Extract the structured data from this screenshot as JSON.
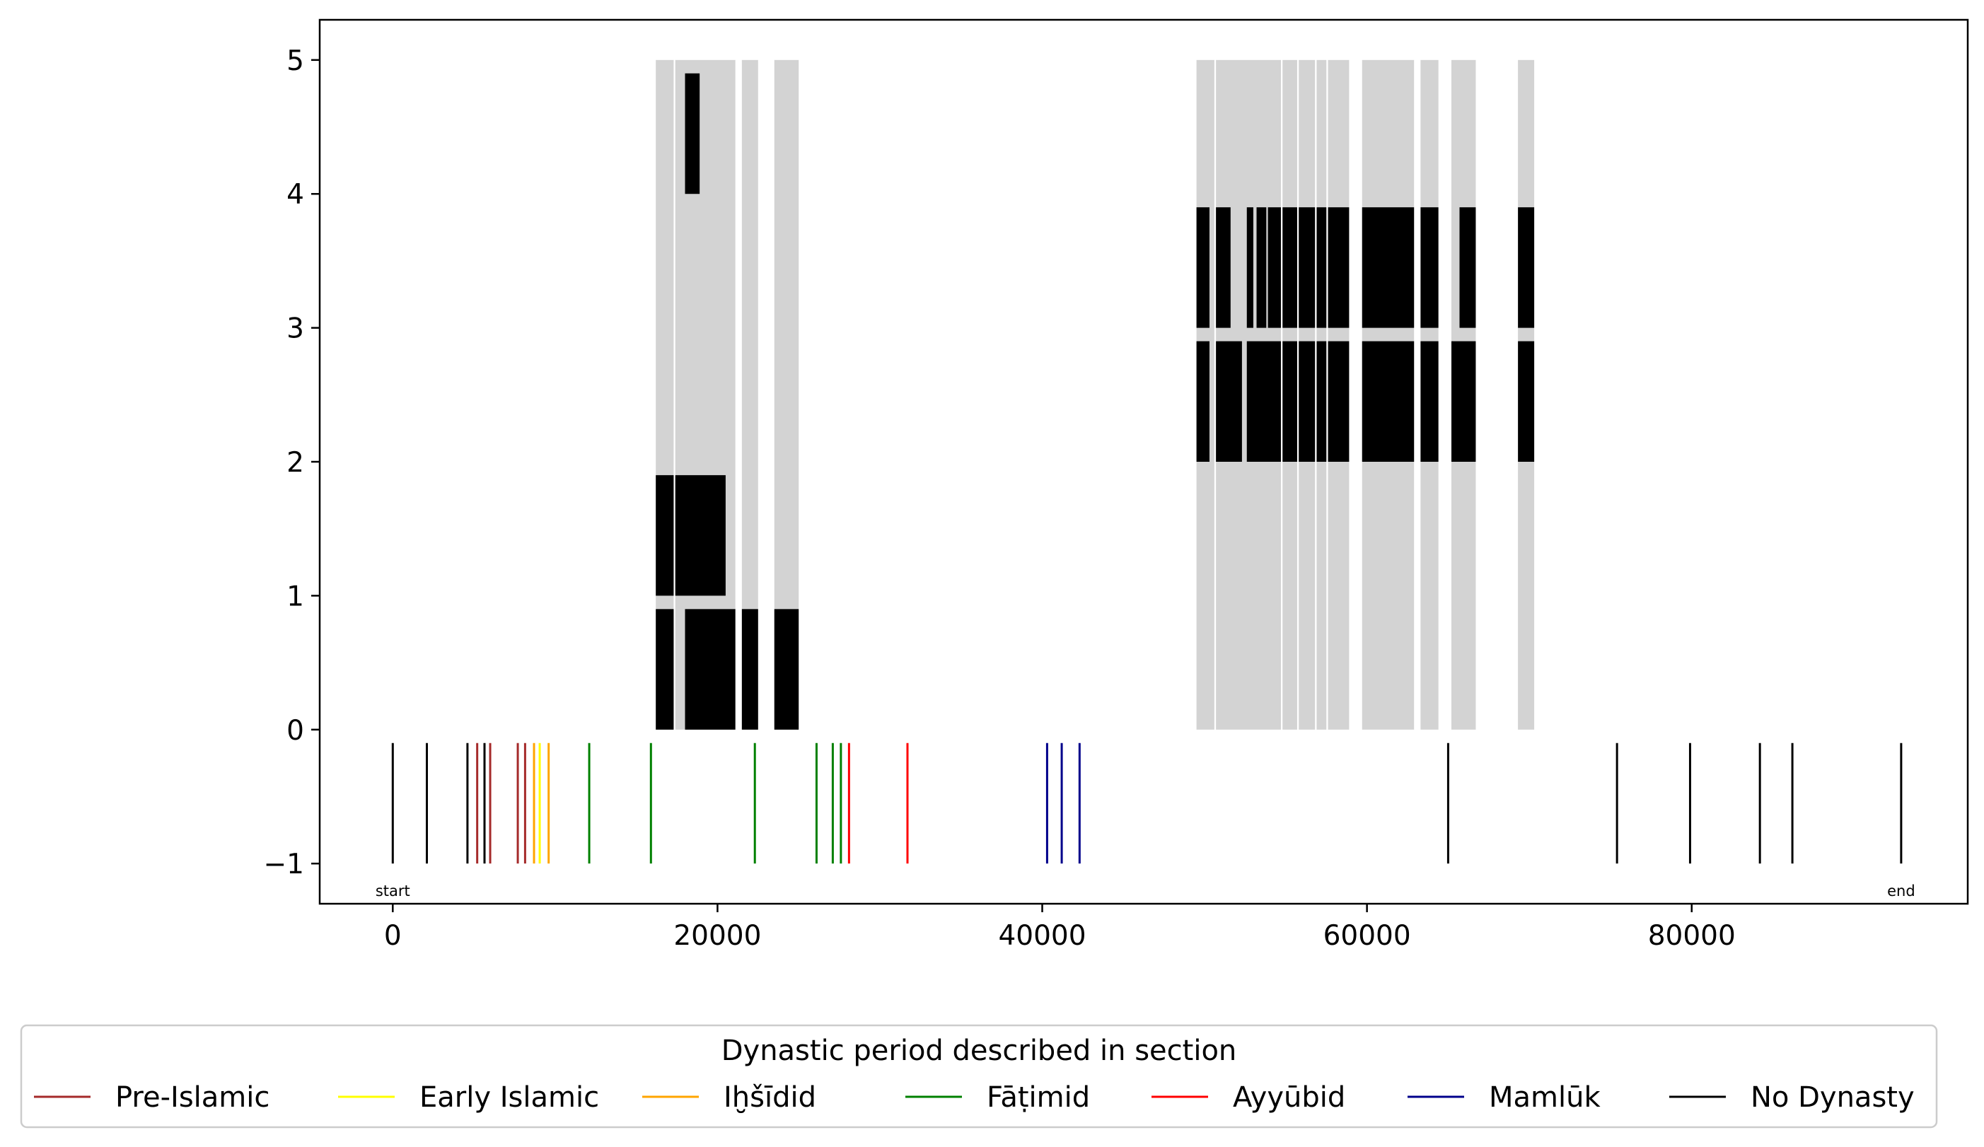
{
  "chart_data": {
    "type": "bar",
    "xlim": [
      -4500,
      97000
    ],
    "ylim": [
      -1.3,
      5.3
    ],
    "x_ticks": [
      0,
      20000,
      40000,
      60000,
      80000
    ],
    "y_ticks": [
      -1,
      0,
      1,
      2,
      3,
      4,
      5
    ],
    "grid": false,
    "background_spans": {
      "color": "#d3d3d3",
      "y_range": [
        0,
        5
      ],
      "spans": [
        [
          16200,
          17300
        ],
        [
          17400,
          21100
        ],
        [
          21500,
          22500
        ],
        [
          23500,
          25000
        ],
        [
          49500,
          50600
        ],
        [
          50700,
          54700
        ],
        [
          54800,
          55700
        ],
        [
          55800,
          56800
        ],
        [
          56900,
          57500
        ],
        [
          57600,
          58900
        ],
        [
          59700,
          62900
        ],
        [
          63300,
          64400
        ],
        [
          65200,
          66700
        ],
        [
          69300,
          70300
        ]
      ]
    },
    "bars": {
      "color": "#000000",
      "items": [
        {
          "x0": 16200,
          "x1": 17300,
          "y0": 0,
          "y1": 0.9
        },
        {
          "x0": 18000,
          "x1": 21100,
          "y0": 0,
          "y1": 0.9
        },
        {
          "x0": 21500,
          "x1": 22500,
          "y0": 0,
          "y1": 0.9
        },
        {
          "x0": 23500,
          "x1": 25000,
          "y0": 0,
          "y1": 0.9
        },
        {
          "x0": 16200,
          "x1": 17300,
          "y0": 1,
          "y1": 1.9
        },
        {
          "x0": 17400,
          "x1": 20500,
          "y0": 1,
          "y1": 1.9
        },
        {
          "x0": 18000,
          "x1": 18900,
          "y0": 4,
          "y1": 4.9
        },
        {
          "x0": 49500,
          "x1": 50300,
          "y0": 2,
          "y1": 2.9
        },
        {
          "x0": 50700,
          "x1": 52300,
          "y0": 2,
          "y1": 2.9
        },
        {
          "x0": 52600,
          "x1": 54700,
          "y0": 2,
          "y1": 2.9
        },
        {
          "x0": 54800,
          "x1": 55700,
          "y0": 2,
          "y1": 2.9
        },
        {
          "x0": 55800,
          "x1": 56800,
          "y0": 2,
          "y1": 2.9
        },
        {
          "x0": 56900,
          "x1": 57500,
          "y0": 2,
          "y1": 2.9
        },
        {
          "x0": 57600,
          "x1": 58900,
          "y0": 2,
          "y1": 2.9
        },
        {
          "x0": 59700,
          "x1": 62900,
          "y0": 2,
          "y1": 2.9
        },
        {
          "x0": 63300,
          "x1": 64400,
          "y0": 2,
          "y1": 2.9
        },
        {
          "x0": 65200,
          "x1": 66700,
          "y0": 2,
          "y1": 2.9
        },
        {
          "x0": 69300,
          "x1": 70300,
          "y0": 2,
          "y1": 2.9
        },
        {
          "x0": 49500,
          "x1": 50300,
          "y0": 3,
          "y1": 3.9
        },
        {
          "x0": 50700,
          "x1": 51600,
          "y0": 3,
          "y1": 3.9
        },
        {
          "x0": 52600,
          "x1": 53000,
          "y0": 3,
          "y1": 3.9
        },
        {
          "x0": 53200,
          "x1": 53800,
          "y0": 3,
          "y1": 3.9
        },
        {
          "x0": 53900,
          "x1": 54700,
          "y0": 3,
          "y1": 3.9
        },
        {
          "x0": 54800,
          "x1": 55700,
          "y0": 3,
          "y1": 3.9
        },
        {
          "x0": 55800,
          "x1": 56800,
          "y0": 3,
          "y1": 3.9
        },
        {
          "x0": 56900,
          "x1": 57500,
          "y0": 3,
          "y1": 3.9
        },
        {
          "x0": 57600,
          "x1": 58900,
          "y0": 3,
          "y1": 3.9
        },
        {
          "x0": 59700,
          "x1": 62900,
          "y0": 3,
          "y1": 3.9
        },
        {
          "x0": 63300,
          "x1": 64400,
          "y0": 3,
          "y1": 3.9
        },
        {
          "x0": 65700,
          "x1": 66700,
          "y0": 3,
          "y1": 3.9
        },
        {
          "x0": 69300,
          "x1": 70300,
          "y0": 3,
          "y1": 3.9
        }
      ]
    },
    "dynasty_markers": {
      "y_range": [
        -1,
        -0.1
      ],
      "markers": [
        {
          "x": 0,
          "dynasty": "No Dynasty"
        },
        {
          "x": 2100,
          "dynasty": "No Dynasty"
        },
        {
          "x": 4600,
          "dynasty": "No Dynasty"
        },
        {
          "x": 5200,
          "dynasty": "Pre-Islamic"
        },
        {
          "x": 5650,
          "dynasty": "No Dynasty"
        },
        {
          "x": 6000,
          "dynasty": "Pre-Islamic"
        },
        {
          "x": 7700,
          "dynasty": "Pre-Islamic"
        },
        {
          "x": 8150,
          "dynasty": "Pre-Islamic"
        },
        {
          "x": 8700,
          "dynasty": "Iḫšīdid"
        },
        {
          "x": 9050,
          "dynasty": "Early Islamic"
        },
        {
          "x": 9600,
          "dynasty": "Iḫšīdid"
        },
        {
          "x": 12100,
          "dynasty": "Fāṭimid"
        },
        {
          "x": 15900,
          "dynasty": "Fāṭimid"
        },
        {
          "x": 22300,
          "dynasty": "Fāṭimid"
        },
        {
          "x": 26100,
          "dynasty": "Fāṭimid"
        },
        {
          "x": 27100,
          "dynasty": "Fāṭimid"
        },
        {
          "x": 27600,
          "dynasty": "Fāṭimid"
        },
        {
          "x": 28100,
          "dynasty": "Ayyūbid"
        },
        {
          "x": 31700,
          "dynasty": "Ayyūbid"
        },
        {
          "x": 40300,
          "dynasty": "Mamlūk"
        },
        {
          "x": 41200,
          "dynasty": "Mamlūk"
        },
        {
          "x": 42300,
          "dynasty": "Mamlūk"
        },
        {
          "x": 65000,
          "dynasty": "No Dynasty"
        },
        {
          "x": 75400,
          "dynasty": "No Dynasty"
        },
        {
          "x": 79900,
          "dynasty": "No Dynasty"
        },
        {
          "x": 84200,
          "dynasty": "No Dynasty"
        },
        {
          "x": 86200,
          "dynasty": "No Dynasty"
        },
        {
          "x": 92900,
          "dynasty": "No Dynasty"
        }
      ]
    },
    "annotations": [
      {
        "text": "start",
        "x": 0,
        "y": -1.2
      },
      {
        "text": "end",
        "x": 92900,
        "y": -1.2
      }
    ],
    "legend": {
      "title": "Dynastic period described in section",
      "placement": "bottom-center",
      "entries": [
        {
          "label": "Pre-Islamic",
          "color": "#a52a2a"
        },
        {
          "label": "Early Islamic",
          "color": "#ffff00"
        },
        {
          "label": "Iḫšīdid",
          "color": "#ffa500"
        },
        {
          "label": "Fāṭimid",
          "color": "#008000"
        },
        {
          "label": "Ayyūbid",
          "color": "#ff0000"
        },
        {
          "label": "Mamlūk",
          "color": "#00008b"
        },
        {
          "label": "No Dynasty",
          "color": "#000000"
        }
      ]
    }
  }
}
